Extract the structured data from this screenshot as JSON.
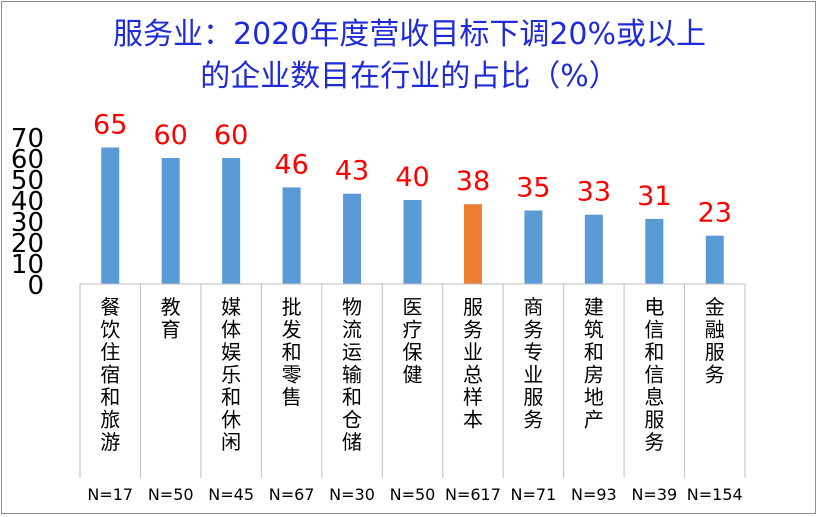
{
  "chart_data": {
    "type": "bar",
    "title_lines": [
      "服务业：2020年度营收目标下调20%或以上",
      "的企业数目在行业的占比（%）"
    ],
    "categories": [
      "餐饮住宿和旅游",
      "教育",
      "媒体娱乐和休闲",
      "批发和零售",
      "物流运输和仓储",
      "医疗保健",
      "服务业总样本",
      "商务专业服务",
      "建筑和房地产",
      "电信和信息服务",
      "金融服务"
    ],
    "sample_sizes": [
      "N=17",
      "N=50",
      "N=45",
      "N=67",
      "N=30",
      "N=50",
      "N=617",
      "N=71",
      "N=93",
      "N=39",
      "N=154"
    ],
    "values": [
      65,
      60,
      60,
      46,
      43,
      40,
      38,
      35,
      33,
      31,
      23
    ],
    "highlight_index": 6,
    "ylim": [
      0,
      70
    ],
    "yticks": [
      0,
      10,
      20,
      30,
      40,
      50,
      60,
      70
    ],
    "grid": false,
    "colors": {
      "bar": "#5b9bd5",
      "highlight": "#ed7d31",
      "data_label": "#ff0000",
      "title": "#1f2bd6"
    }
  }
}
